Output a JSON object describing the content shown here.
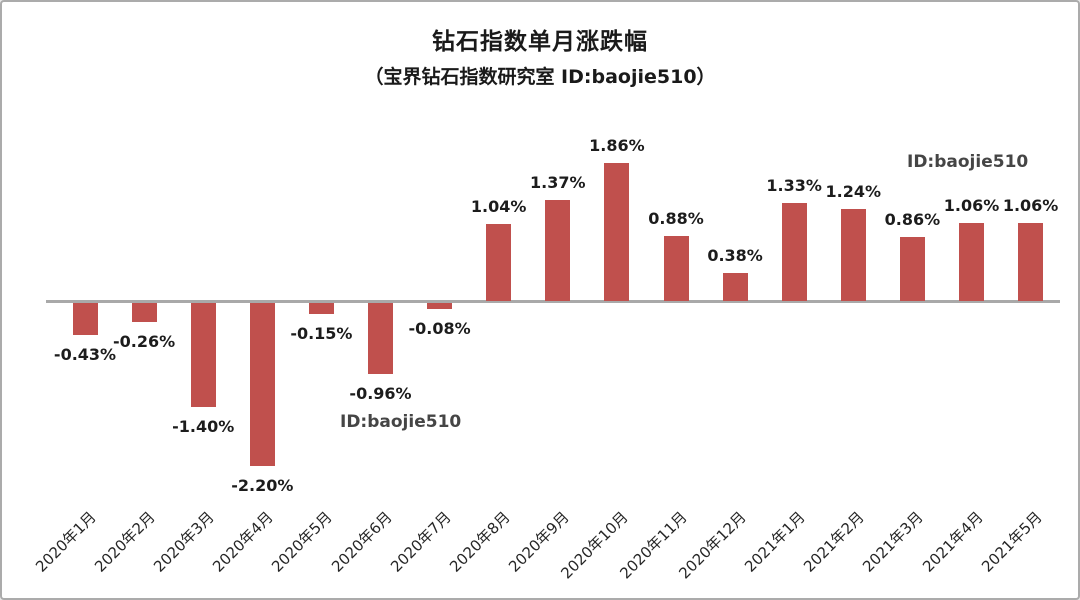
{
  "chart_data": {
    "type": "bar",
    "title": "钻石指数单月涨跌幅",
    "subtitle": "（宝界钻石指数研究室  ID:baojie510）",
    "categories": [
      "2020年1月",
      "2020年2月",
      "2020年3月",
      "2020年4月",
      "2020年5月",
      "2020年6月",
      "2020年7月",
      "2020年8月",
      "2020年9月",
      "2020年10月",
      "2020年11月",
      "2020年12月",
      "2021年1月",
      "2021年2月",
      "2021年3月",
      "2021年4月",
      "2021年5月"
    ],
    "values": [
      -0.43,
      -0.26,
      -1.4,
      -2.2,
      -0.15,
      -0.96,
      -0.08,
      1.04,
      1.37,
      1.86,
      0.88,
      0.38,
      1.33,
      1.24,
      0.86,
      1.06,
      1.06
    ],
    "data_labels": [
      "-0.43%",
      "-0.26%",
      "-1.40%",
      "-2.20%",
      "-0.15%",
      "-0.96%",
      "-0.08%",
      "1.04%",
      "1.37%",
      "1.86%",
      "0.88%",
      "0.38%",
      "1.33%",
      "1.24%",
      "0.86%",
      "1.06%",
      "1.06%"
    ],
    "xlabel": "",
    "ylabel": "",
    "ylim": [
      -2.6,
      2.2
    ],
    "grid": false,
    "legend": "none",
    "bar_color": "#C0504D",
    "axis_color": "#A9A9A9",
    "label_color": "#1C1C1C"
  },
  "watermarks": {
    "top_right": "ID:baojie510",
    "mid_left": "ID:baojie510"
  }
}
